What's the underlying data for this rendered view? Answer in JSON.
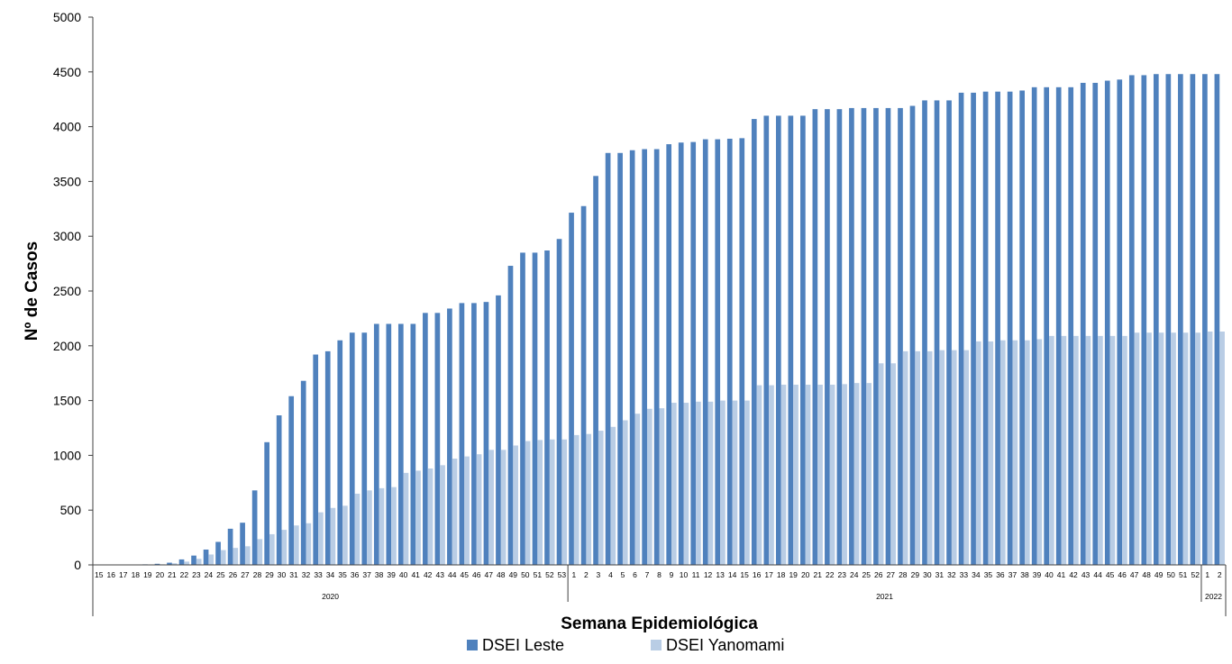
{
  "chart_data": {
    "type": "bar",
    "title": "",
    "xlabel": "Semana Epidemiológica",
    "ylabel": "Nº de Casos",
    "ylim": [
      0,
      5000
    ],
    "yticks": [
      0,
      500,
      1000,
      1500,
      2000,
      2500,
      3000,
      3500,
      4000,
      4500,
      5000
    ],
    "grid": false,
    "legend_position": "bottom",
    "categories": [
      "15",
      "16",
      "17",
      "18",
      "19",
      "20",
      "21",
      "22",
      "23",
      "24",
      "25",
      "26",
      "27",
      "28",
      "29",
      "30",
      "31",
      "32",
      "33",
      "34",
      "35",
      "36",
      "37",
      "38",
      "39",
      "40",
      "41",
      "42",
      "43",
      "44",
      "45",
      "46",
      "47",
      "48",
      "49",
      "50",
      "51",
      "52",
      "53",
      "1",
      "2",
      "3",
      "4",
      "5",
      "6",
      "7",
      "8",
      "9",
      "10",
      "11",
      "12",
      "13",
      "14",
      "15",
      "16",
      "17",
      "18",
      "19",
      "20",
      "21",
      "22",
      "23",
      "24",
      "25",
      "26",
      "27",
      "28",
      "29",
      "30",
      "31",
      "32",
      "33",
      "34",
      "35",
      "36",
      "37",
      "38",
      "39",
      "40",
      "41",
      "42",
      "43",
      "44",
      "45",
      "46",
      "47",
      "48",
      "49",
      "50",
      "51",
      "52",
      "1",
      "2"
    ],
    "groups": [
      {
        "label": "2020",
        "count": 39
      },
      {
        "label": "2021",
        "count": 52
      },
      {
        "label": "2022",
        "count": 2
      }
    ],
    "series": [
      {
        "name": "DSEI Leste",
        "color": "#4f81bd",
        "values": [
          0,
          0,
          0,
          3,
          5,
          10,
          20,
          50,
          85,
          140,
          210,
          330,
          385,
          680,
          1120,
          1365,
          1540,
          1680,
          1920,
          1950,
          2050,
          2120,
          2120,
          2200,
          2200,
          2200,
          2200,
          2300,
          2300,
          2340,
          2390,
          2390,
          2400,
          2460,
          2730,
          2850,
          2850,
          2870,
          2975,
          3215,
          3275,
          3550,
          3760,
          3760,
          3785,
          3795,
          3795,
          3840,
          3855,
          3860,
          3885,
          3885,
          3890,
          3895,
          4070,
          4100,
          4100,
          4100,
          4100,
          4160,
          4160,
          4160,
          4170,
          4170,
          4170,
          4170,
          4170,
          4190,
          4240,
          4240,
          4240,
          4310,
          4310,
          4320,
          4320,
          4320,
          4330,
          4360,
          4360,
          4360,
          4360,
          4400,
          4400,
          4420,
          4430,
          4470,
          4470,
          4480,
          4480,
          4480,
          4480,
          4480,
          4480
        ]
      },
      {
        "name": "DSEI Yanomami",
        "color": "#b9cde5",
        "values": [
          0,
          0,
          0,
          0,
          2,
          5,
          15,
          30,
          55,
          95,
          135,
          155,
          170,
          235,
          280,
          320,
          360,
          380,
          480,
          520,
          540,
          650,
          680,
          700,
          710,
          840,
          860,
          880,
          910,
          970,
          990,
          1010,
          1050,
          1050,
          1090,
          1130,
          1140,
          1145,
          1145,
          1185,
          1195,
          1225,
          1260,
          1320,
          1380,
          1425,
          1430,
          1480,
          1480,
          1490,
          1490,
          1500,
          1500,
          1500,
          1640,
          1640,
          1645,
          1645,
          1645,
          1645,
          1645,
          1650,
          1660,
          1660,
          1840,
          1840,
          1950,
          1950,
          1950,
          1960,
          1960,
          1960,
          2040,
          2040,
          2050,
          2050,
          2050,
          2060,
          2090,
          2090,
          2090,
          2090,
          2090,
          2090,
          2090,
          2120,
          2120,
          2120,
          2120,
          2120,
          2120,
          2130,
          2130
        ]
      }
    ]
  }
}
